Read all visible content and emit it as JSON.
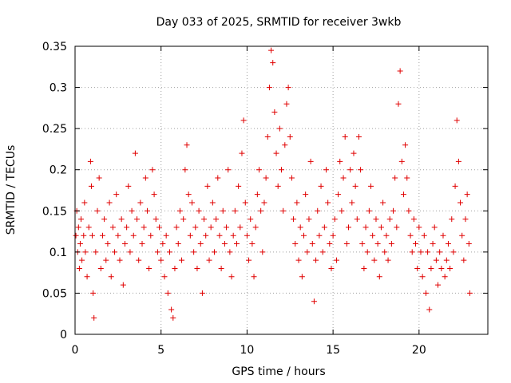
{
  "chart_data": {
    "type": "scatter",
    "title": "Day 033 of 2025, SRMTID for receiver 3wkb",
    "xlabel": "GPS time / hours",
    "ylabel": "SRMTID / TECUs",
    "xlim": [
      0,
      24
    ],
    "ylim": [
      0,
      0.35
    ],
    "x_ticks": [
      0,
      5,
      10,
      15,
      20
    ],
    "x_tick_labels": [
      "0",
      "5",
      "10",
      "15",
      "20"
    ],
    "y_ticks": [
      0,
      0.05,
      0.1,
      0.15,
      0.2,
      0.25,
      0.3,
      0.35
    ],
    "y_tick_labels": [
      "0",
      "0.05",
      "0.1",
      "0.15",
      "0.2",
      "0.25",
      "0.3",
      "0.35"
    ],
    "grid": true,
    "marker": "+",
    "colors": {
      "series": "#e00000",
      "grid": "#a0a0a0",
      "axis": "#000000"
    },
    "series": [
      {
        "name": "SRMTID",
        "points": [
          [
            0.05,
            0.12
          ],
          [
            0.1,
            0.15
          ],
          [
            0.15,
            0.1
          ],
          [
            0.2,
            0.13
          ],
          [
            0.25,
            0.08
          ],
          [
            0.3,
            0.11
          ],
          [
            0.35,
            0.14
          ],
          [
            0.4,
            0.09
          ],
          [
            0.5,
            0.12
          ],
          [
            0.55,
            0.16
          ],
          [
            0.6,
            0.1
          ],
          [
            0.7,
            0.07
          ],
          [
            0.8,
            0.13
          ],
          [
            0.9,
            0.21
          ],
          [
            0.95,
            0.18
          ],
          [
            1.0,
            0.12
          ],
          [
            1.05,
            0.05
          ],
          [
            1.1,
            0.02
          ],
          [
            1.2,
            0.1
          ],
          [
            1.3,
            0.15
          ],
          [
            1.4,
            0.19
          ],
          [
            1.5,
            0.08
          ],
          [
            1.6,
            0.12
          ],
          [
            1.7,
            0.14
          ],
          [
            1.8,
            0.09
          ],
          [
            1.9,
            0.11
          ],
          [
            2.0,
            0.16
          ],
          [
            2.1,
            0.07
          ],
          [
            2.2,
            0.13
          ],
          [
            2.3,
            0.1
          ],
          [
            2.4,
            0.17
          ],
          [
            2.5,
            0.12
          ],
          [
            2.6,
            0.09
          ],
          [
            2.7,
            0.14
          ],
          [
            2.8,
            0.06
          ],
          [
            2.9,
            0.11
          ],
          [
            3.0,
            0.13
          ],
          [
            3.1,
            0.18
          ],
          [
            3.2,
            0.1
          ],
          [
            3.3,
            0.15
          ],
          [
            3.4,
            0.12
          ],
          [
            3.5,
            0.22
          ],
          [
            3.6,
            0.14
          ],
          [
            3.7,
            0.09
          ],
          [
            3.8,
            0.16
          ],
          [
            3.9,
            0.11
          ],
          [
            4.0,
            0.13
          ],
          [
            4.1,
            0.19
          ],
          [
            4.2,
            0.15
          ],
          [
            4.3,
            0.08
          ],
          [
            4.4,
            0.12
          ],
          [
            4.5,
            0.2
          ],
          [
            4.6,
            0.17
          ],
          [
            4.7,
            0.14
          ],
          [
            4.8,
            0.1
          ],
          [
            4.9,
            0.13
          ],
          [
            5.0,
            0.09
          ],
          [
            5.1,
            0.11
          ],
          [
            5.2,
            0.07
          ],
          [
            5.3,
            0.12
          ],
          [
            5.4,
            0.05
          ],
          [
            5.5,
            0.1
          ],
          [
            5.6,
            0.03
          ],
          [
            5.7,
            0.02
          ],
          [
            5.8,
            0.08
          ],
          [
            5.9,
            0.13
          ],
          [
            6.0,
            0.11
          ],
          [
            6.1,
            0.15
          ],
          [
            6.2,
            0.09
          ],
          [
            6.3,
            0.14
          ],
          [
            6.4,
            0.2
          ],
          [
            6.5,
            0.23
          ],
          [
            6.6,
            0.17
          ],
          [
            6.7,
            0.12
          ],
          [
            6.8,
            0.16
          ],
          [
            6.9,
            0.1
          ],
          [
            7.0,
            0.13
          ],
          [
            7.1,
            0.08
          ],
          [
            7.2,
            0.15
          ],
          [
            7.3,
            0.11
          ],
          [
            7.4,
            0.05
          ],
          [
            7.5,
            0.14
          ],
          [
            7.6,
            0.12
          ],
          [
            7.7,
            0.18
          ],
          [
            7.8,
            0.09
          ],
          [
            7.9,
            0.13
          ],
          [
            8.0,
            0.16
          ],
          [
            8.1,
            0.1
          ],
          [
            8.2,
            0.14
          ],
          [
            8.3,
            0.19
          ],
          [
            8.4,
            0.12
          ],
          [
            8.5,
            0.08
          ],
          [
            8.6,
            0.15
          ],
          [
            8.7,
            0.11
          ],
          [
            8.8,
            0.13
          ],
          [
            8.9,
            0.2
          ],
          [
            9.0,
            0.1
          ],
          [
            9.1,
            0.07
          ],
          [
            9.2,
            0.12
          ],
          [
            9.3,
            0.15
          ],
          [
            9.4,
            0.11
          ],
          [
            9.5,
            0.18
          ],
          [
            9.6,
            0.13
          ],
          [
            9.7,
            0.22
          ],
          [
            9.8,
            0.26
          ],
          [
            9.9,
            0.16
          ],
          [
            10.0,
            0.12
          ],
          [
            10.1,
            0.09
          ],
          [
            10.2,
            0.14
          ],
          [
            10.3,
            0.11
          ],
          [
            10.4,
            0.07
          ],
          [
            10.5,
            0.13
          ],
          [
            10.6,
            0.17
          ],
          [
            10.7,
            0.2
          ],
          [
            10.8,
            0.15
          ],
          [
            10.9,
            0.1
          ],
          [
            11.0,
            0.16
          ],
          [
            11.1,
            0.19
          ],
          [
            11.2,
            0.24
          ],
          [
            11.3,
            0.3
          ],
          [
            11.4,
            0.345
          ],
          [
            11.5,
            0.33
          ],
          [
            11.6,
            0.27
          ],
          [
            11.7,
            0.22
          ],
          [
            11.8,
            0.18
          ],
          [
            11.9,
            0.25
          ],
          [
            12.0,
            0.2
          ],
          [
            12.1,
            0.15
          ],
          [
            12.2,
            0.23
          ],
          [
            12.3,
            0.28
          ],
          [
            12.4,
            0.3
          ],
          [
            12.5,
            0.24
          ],
          [
            12.6,
            0.19
          ],
          [
            12.7,
            0.14
          ],
          [
            12.8,
            0.11
          ],
          [
            12.9,
            0.16
          ],
          [
            13.0,
            0.09
          ],
          [
            13.1,
            0.13
          ],
          [
            13.2,
            0.07
          ],
          [
            13.3,
            0.12
          ],
          [
            13.4,
            0.17
          ],
          [
            13.5,
            0.1
          ],
          [
            13.6,
            0.14
          ],
          [
            13.7,
            0.21
          ],
          [
            13.8,
            0.11
          ],
          [
            13.9,
            0.04
          ],
          [
            14.0,
            0.09
          ],
          [
            14.1,
            0.15
          ],
          [
            14.2,
            0.12
          ],
          [
            14.3,
            0.18
          ],
          [
            14.4,
            0.1
          ],
          [
            14.5,
            0.13
          ],
          [
            14.6,
            0.2
          ],
          [
            14.7,
            0.16
          ],
          [
            14.8,
            0.11
          ],
          [
            14.9,
            0.08
          ],
          [
            15.0,
            0.12
          ],
          [
            15.1,
            0.14
          ],
          [
            15.2,
            0.09
          ],
          [
            15.3,
            0.17
          ],
          [
            15.4,
            0.21
          ],
          [
            15.5,
            0.15
          ],
          [
            15.6,
            0.19
          ],
          [
            15.7,
            0.24
          ],
          [
            15.8,
            0.11
          ],
          [
            15.9,
            0.13
          ],
          [
            16.0,
            0.2
          ],
          [
            16.1,
            0.16
          ],
          [
            16.2,
            0.22
          ],
          [
            16.3,
            0.18
          ],
          [
            16.4,
            0.14
          ],
          [
            16.5,
            0.24
          ],
          [
            16.6,
            0.2
          ],
          [
            16.7,
            0.11
          ],
          [
            16.8,
            0.08
          ],
          [
            16.9,
            0.13
          ],
          [
            17.0,
            0.1
          ],
          [
            17.1,
            0.15
          ],
          [
            17.2,
            0.18
          ],
          [
            17.3,
            0.12
          ],
          [
            17.4,
            0.09
          ],
          [
            17.5,
            0.14
          ],
          [
            17.6,
            0.11
          ],
          [
            17.7,
            0.07
          ],
          [
            17.8,
            0.13
          ],
          [
            17.9,
            0.16
          ],
          [
            18.0,
            0.1
          ],
          [
            18.1,
            0.12
          ],
          [
            18.2,
            0.09
          ],
          [
            18.3,
            0.14
          ],
          [
            18.4,
            0.11
          ],
          [
            18.5,
            0.15
          ],
          [
            18.6,
            0.19
          ],
          [
            18.7,
            0.13
          ],
          [
            18.8,
            0.28
          ],
          [
            18.9,
            0.32
          ],
          [
            19.0,
            0.21
          ],
          [
            19.1,
            0.17
          ],
          [
            19.2,
            0.23
          ],
          [
            19.3,
            0.19
          ],
          [
            19.4,
            0.15
          ],
          [
            19.5,
            0.12
          ],
          [
            19.6,
            0.1
          ],
          [
            19.7,
            0.14
          ],
          [
            19.8,
            0.11
          ],
          [
            19.9,
            0.08
          ],
          [
            20.0,
            0.13
          ],
          [
            20.1,
            0.1
          ],
          [
            20.2,
            0.07
          ],
          [
            20.3,
            0.12
          ],
          [
            20.4,
            0.05
          ],
          [
            20.5,
            0.1
          ],
          [
            20.6,
            0.03
          ],
          [
            20.7,
            0.08
          ],
          [
            20.8,
            0.11
          ],
          [
            20.9,
            0.13
          ],
          [
            21.0,
            0.09
          ],
          [
            21.1,
            0.06
          ],
          [
            21.2,
            0.1
          ],
          [
            21.3,
            0.08
          ],
          [
            21.4,
            0.12
          ],
          [
            21.5,
            0.07
          ],
          [
            21.6,
            0.09
          ],
          [
            21.7,
            0.11
          ],
          [
            21.8,
            0.08
          ],
          [
            21.9,
            0.14
          ],
          [
            22.0,
            0.1
          ],
          [
            22.1,
            0.18
          ],
          [
            22.2,
            0.26
          ],
          [
            22.3,
            0.21
          ],
          [
            22.4,
            0.16
          ],
          [
            22.5,
            0.12
          ],
          [
            22.6,
            0.09
          ],
          [
            22.7,
            0.14
          ],
          [
            22.8,
            0.17
          ],
          [
            22.9,
            0.11
          ],
          [
            22.95,
            0.05
          ]
        ]
      }
    ]
  }
}
